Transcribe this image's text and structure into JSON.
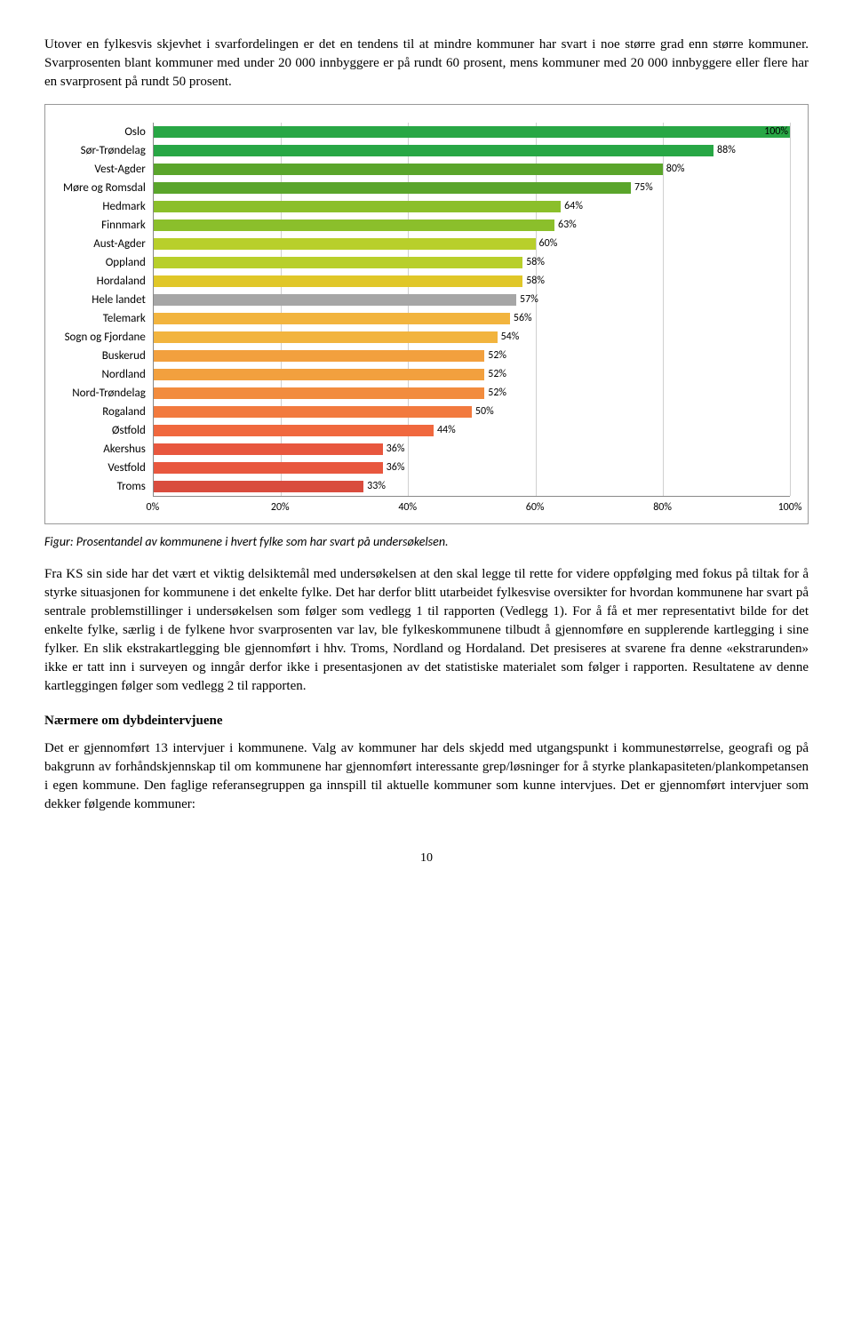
{
  "para1": "Utover en fylkesvis skjevhet i svarfordelingen er det en tendens til at mindre kommuner har svart i noe større grad enn større kommuner. Svarprosenten blant kommuner med under 20 000 innbyggere er på rundt 60 prosent, mens kommuner med 20 000 innbyggere eller flere har en svarprosent på rundt 50 prosent.",
  "chart": {
    "categories": [
      "Oslo",
      "Sør-Trøndelag",
      "Vest-Agder",
      "Møre og Romsdal",
      "Hedmark",
      "Finnmark",
      "Aust-Agder",
      "Oppland",
      "Hordaland",
      "Hele landet",
      "Telemark",
      "Sogn og Fjordane",
      "Buskerud",
      "Nordland",
      "Nord-Trøndelag",
      "Rogaland",
      "Østfold",
      "Akershus",
      "Vestfold",
      "Troms"
    ],
    "values": [
      100,
      88,
      80,
      75,
      64,
      63,
      60,
      58,
      58,
      57,
      56,
      54,
      52,
      52,
      52,
      50,
      44,
      36,
      36,
      33
    ],
    "colors": [
      "#28a745",
      "#28a745",
      "#5aa52b",
      "#5aa52b",
      "#8bbf2b",
      "#8bbf2b",
      "#b8cf2b",
      "#b8cf2b",
      "#e0c728",
      "#a6a6a6",
      "#f2b43e",
      "#f2b43e",
      "#f2a03e",
      "#f2a03e",
      "#f28c3e",
      "#f27a3e",
      "#f0683e",
      "#e8573e",
      "#e8573e",
      "#d94c3e"
    ],
    "xticks": [
      "0%",
      "20%",
      "40%",
      "60%",
      "80%",
      "100%"
    ],
    "xtick_pos": [
      0,
      20,
      40,
      60,
      80,
      100
    ]
  },
  "caption": "Figur: Prosentandel av kommunene i hvert fylke som har svart på undersøkelsen.",
  "para2": "Fra KS sin side har det vært et viktig delsiktemål med undersøkelsen at den skal legge til rette for videre oppfølging med fokus på tiltak for å styrke situasjonen for kommunene i det enkelte fylke. Det har derfor blitt utarbeidet fylkesvise oversikter for hvordan kommunene har svart på sentrale problemstillinger i undersøkelsen som følger som vedlegg 1 til rapporten (Vedlegg 1). For å få et mer representativt bilde for det enkelte fylke, særlig i de fylkene hvor svarprosenten var lav, ble fylkeskommunene tilbudt å gjennomføre en supplerende kartlegging i sine fylker. En slik ekstrakartlegging ble gjennomført i hhv. Troms, Nordland og Hordaland. Det presiseres at svarene fra denne «ekstrarunden» ikke er tatt inn i surveyen og inngår derfor ikke i presentasjonen av det statistiske materialet som følger i rapporten. Resultatene av denne kartleggingen følger som vedlegg 2 til rapporten.",
  "subhead": "Nærmere om dybdeintervjuene",
  "para3": "Det er gjennomført 13 intervjuer i kommunene. Valg av kommuner har dels skjedd med utgangspunkt i kommunestørrelse, geografi og på bakgrunn av forhåndskjennskap til om kommunene har gjennomført interessante grep/løsninger for å styrke plankapasiteten/plankompetansen i egen kommune. Den faglige referansegruppen ga innspill til aktuelle kommuner som kunne intervjues. Det er gjennomført intervjuer som dekker følgende kommuner:",
  "pagenum": "10"
}
